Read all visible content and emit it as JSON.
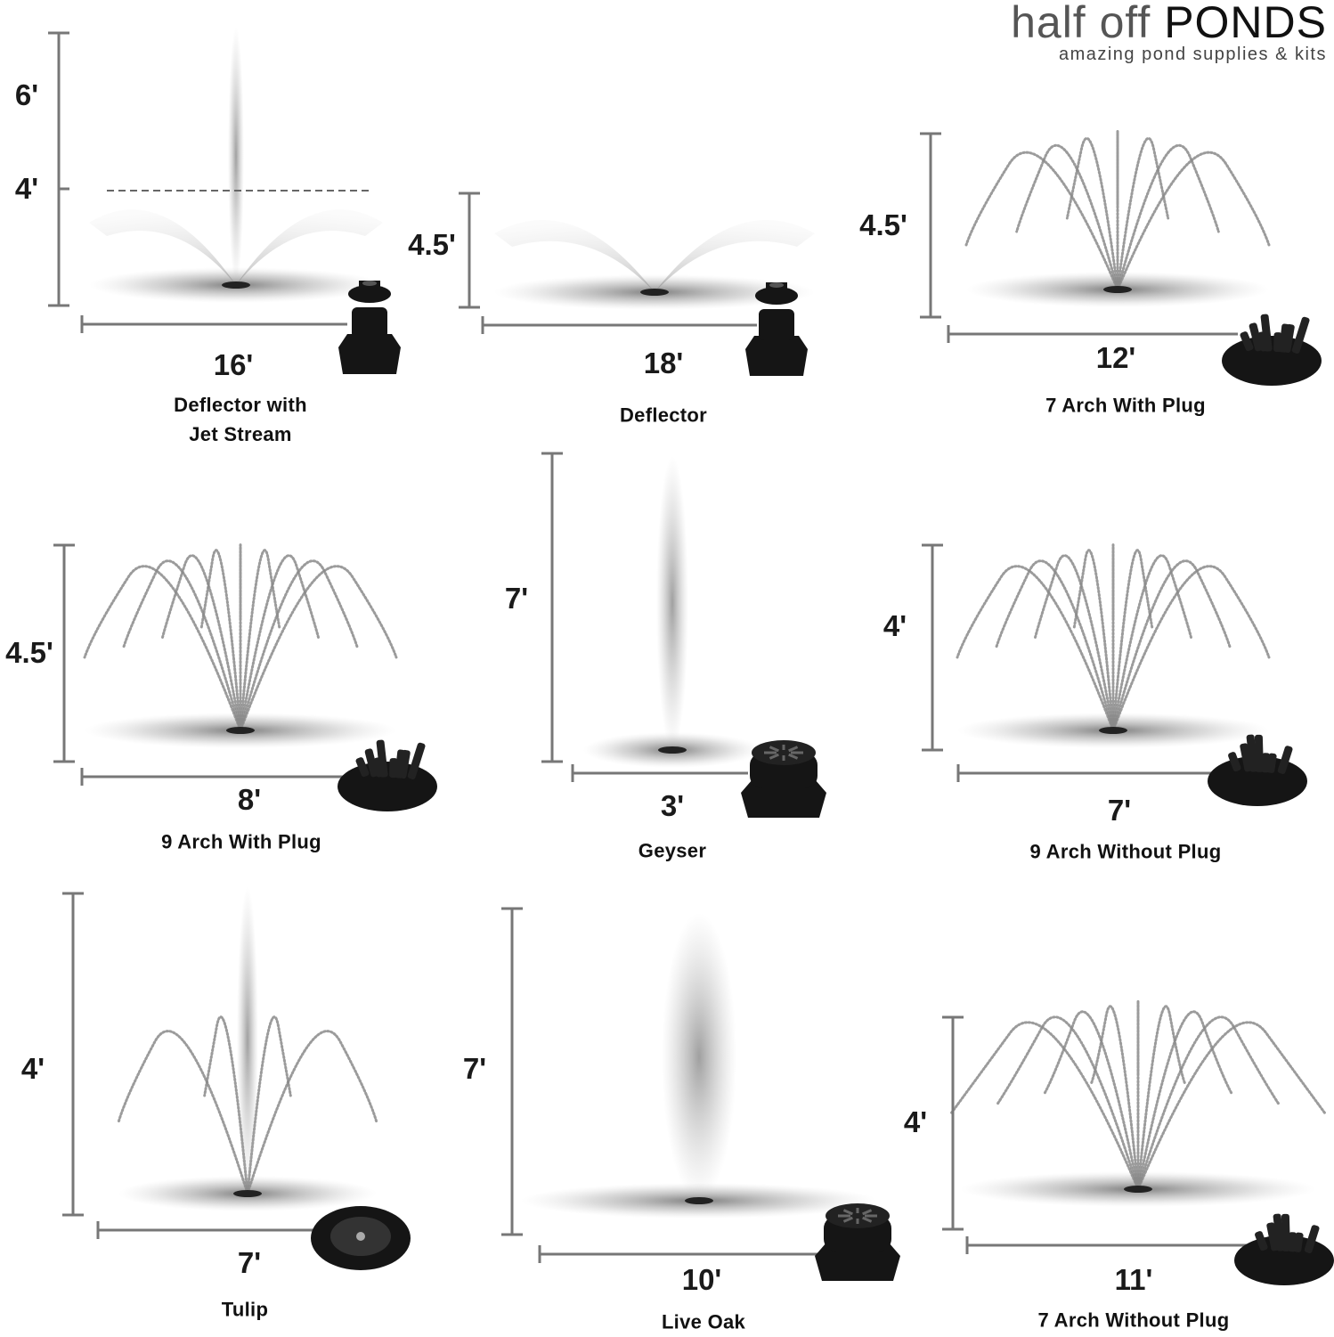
{
  "logo": {
    "brand_light": "half off",
    "brand_bold": "PONDS",
    "tagline": "amazing pond supplies & kits"
  },
  "colors": {
    "dimension_line": "#777777",
    "spray": "#8a8a8a",
    "nozzle": "#151515",
    "text": "#111111"
  },
  "panels": [
    {
      "name": "Deflector with\nJet Stream",
      "height": "6'",
      "secondary_height": "4'",
      "width": "16'",
      "spray": "deflector-jet",
      "nozzle": "deflector-icon"
    },
    {
      "name": "Deflector",
      "height": "4.5'",
      "width": "18'",
      "spray": "deflector",
      "nozzle": "deflector-icon"
    },
    {
      "name": "7 Arch With Plug",
      "height": "4.5'",
      "width": "12'",
      "spray": "arch-7",
      "nozzle": "multi-jet-plug-icon"
    },
    {
      "name": "9 Arch With Plug",
      "height": "4.5'",
      "width": "8'",
      "spray": "arch-9",
      "nozzle": "multi-jet-plug-icon"
    },
    {
      "name": "Geyser",
      "height": "7'",
      "width": "3'",
      "spray": "geyser",
      "nozzle": "geyser-icon"
    },
    {
      "name": "9 Arch Without Plug",
      "height": "4'",
      "width": "7'",
      "spray": "arch-9",
      "nozzle": "multi-jet-icon"
    },
    {
      "name": "Tulip",
      "height": "4'",
      "width": "7'",
      "spray": "tulip",
      "nozzle": "tulip-icon"
    },
    {
      "name": "Live Oak",
      "height": "7'",
      "width": "10'",
      "spray": "live-oak",
      "nozzle": "geyser-icon"
    },
    {
      "name": "7 Arch Without Plug",
      "height": "4'",
      "width": "11'",
      "spray": "arch-7-wide",
      "nozzle": "multi-jet-icon"
    }
  ]
}
